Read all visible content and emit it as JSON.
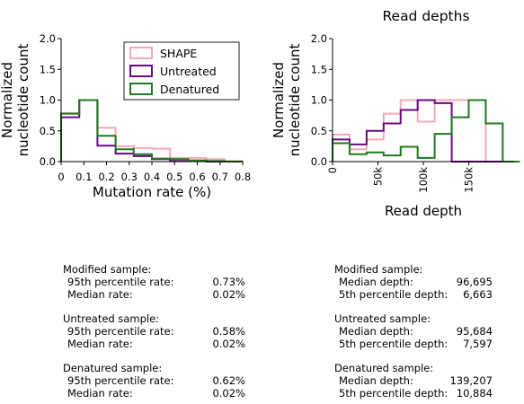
{
  "chart_data": [
    {
      "type": "step-histogram",
      "title": "",
      "xlabel": "Mutation rate (%)",
      "ylabel": "Normalized\nnucleotide count",
      "xlim": [
        0,
        0.8
      ],
      "ylim": [
        0,
        2.0
      ],
      "xticks": [
        "0",
        "0.1",
        "0.2",
        "0.3",
        "0.4",
        "0.5",
        "0.6",
        "0.7",
        "0.8"
      ],
      "yticks": [
        "0.0",
        "0.5",
        "1.0",
        "1.5",
        "2.0"
      ],
      "legend_position": "top-right",
      "bin_edges": [
        0,
        0.08,
        0.16,
        0.24,
        0.32,
        0.4,
        0.48,
        0.56,
        0.64,
        0.72,
        0.8
      ],
      "series": [
        {
          "name": "SHAPE",
          "color": "#f4a8b8",
          "values": [
            0.79,
            1.0,
            0.55,
            0.25,
            0.22,
            0.21,
            0.06,
            0.06,
            0.04,
            0.01
          ]
        },
        {
          "name": "Untreated",
          "color": "#6a0a80",
          "values": [
            0.72,
            1.0,
            0.26,
            0.13,
            0.09,
            0.04,
            0.01,
            0.01,
            0.0,
            0.0
          ]
        },
        {
          "name": "Denatured",
          "color": "#1e7b1e",
          "values": [
            0.78,
            1.0,
            0.42,
            0.2,
            0.12,
            0.05,
            0.04,
            0.02,
            0.01,
            0.0
          ]
        }
      ]
    },
    {
      "type": "step-histogram",
      "title": "Read depths",
      "xlabel": "Read depth",
      "ylabel": "Normalized\nnucleotide count",
      "xlim": [
        0,
        200000
      ],
      "ylim": [
        0,
        2.0
      ],
      "xtick_values": [
        0,
        50000,
        100000,
        150000
      ],
      "xticks": [
        "0",
        "50k",
        "100k",
        "150k"
      ],
      "yticks": [
        "0.0",
        "0.5",
        "1.0",
        "1.5",
        "2.0"
      ],
      "bin_edges": [
        0,
        18750,
        37500,
        56250,
        75000,
        93750,
        112500,
        131250,
        150000,
        168750,
        187500,
        206250
      ],
      "series": [
        {
          "name": "SHAPE",
          "color": "#f4a8b8",
          "values": [
            0.44,
            0.2,
            0.36,
            0.78,
            1.0,
            0.65,
            1.0,
            1.0,
            1.0,
            0.0,
            0.0
          ]
        },
        {
          "name": "Untreated",
          "color": "#6a0a80",
          "values": [
            0.36,
            0.28,
            0.5,
            0.62,
            0.84,
            1.0,
            0.95,
            0.0,
            0.0,
            0.0,
            0.0
          ]
        },
        {
          "name": "Denatured",
          "color": "#1e7b1e",
          "values": [
            0.3,
            0.12,
            0.15,
            0.1,
            0.24,
            0.06,
            0.45,
            0.72,
            1.0,
            0.62,
            0.0
          ]
        }
      ]
    }
  ],
  "stats_left": {
    "modified": {
      "heading": "Modified sample:",
      "rows": [
        [
          "95th percentile rate:",
          "0.73%"
        ],
        [
          "Median rate:",
          "0.02%"
        ]
      ]
    },
    "untreated": {
      "heading": "Untreated sample:",
      "rows": [
        [
          "95th percentile rate:",
          "0.58%"
        ],
        [
          "Median rate:",
          "0.02%"
        ]
      ]
    },
    "denatured": {
      "heading": "Denatured sample:",
      "rows": [
        [
          "95th percentile rate:",
          "0.62%"
        ],
        [
          "Median rate:",
          "0.02%"
        ]
      ]
    }
  },
  "stats_right": {
    "modified": {
      "heading": "Modified sample:",
      "rows": [
        [
          "Median depth:",
          "96,695"
        ],
        [
          "5th percentile depth:",
          "6,663"
        ]
      ]
    },
    "untreated": {
      "heading": "Untreated sample:",
      "rows": [
        [
          "Median depth:",
          "95,684"
        ],
        [
          "5th percentile depth:",
          "7,597"
        ]
      ]
    },
    "denatured": {
      "heading": "Denatured sample:",
      "rows": [
        [
          "Median depth:",
          "139,207"
        ],
        [
          "5th percentile depth:",
          "10,884"
        ]
      ]
    }
  }
}
